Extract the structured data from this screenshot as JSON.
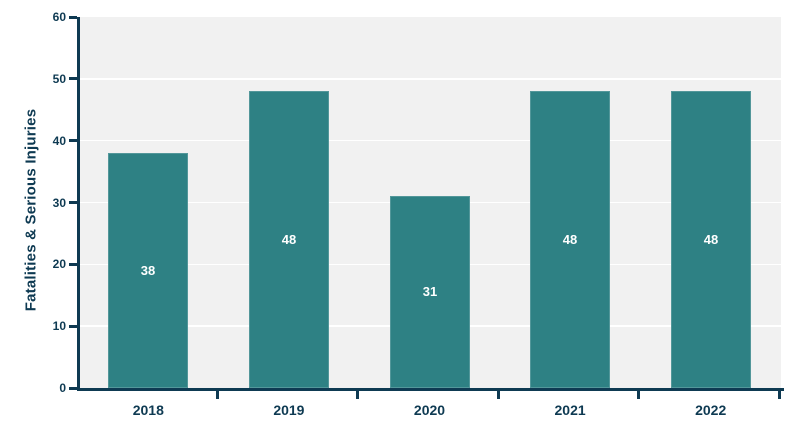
{
  "chart_data": {
    "type": "bar",
    "categories": [
      "2018",
      "2019",
      "2020",
      "2021",
      "2022"
    ],
    "values": [
      38,
      48,
      31,
      48,
      48
    ],
    "bar_labels": [
      "38",
      "48",
      "31",
      "48",
      "48"
    ],
    "title": "",
    "xlabel": "",
    "ylabel": "Fatalities & Serious Injuries",
    "ylim": [
      0,
      60
    ],
    "yticks": [
      0,
      10,
      20,
      30,
      40,
      50,
      60
    ],
    "grid": "horizontal",
    "legend_position": "none"
  },
  "colors": {
    "bar": "#2e8184",
    "axis": "#0e3a52",
    "plot_background": "#f1f1f1",
    "gridline": "#ffffff",
    "page_background": "#ffffff",
    "bar_label_text": "#ffffff"
  }
}
